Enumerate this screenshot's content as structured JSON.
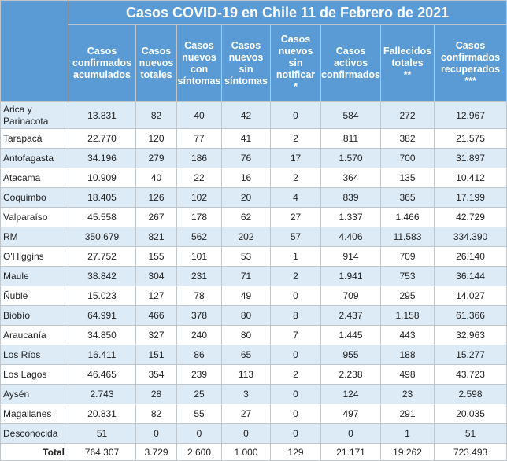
{
  "title": "Casos COVID-19 en Chile 11 de Febrero de 2021",
  "headers": [
    "Casos\nconfirmados\nacumulados",
    "Casos\nnuevos\ntotales",
    "Casos\nnuevos\ncon\nsíntomas",
    "Casos\nnuevos\nsin\nsíntomas",
    "Casos\nnuevos\nsin\nnotificar\n*",
    "Casos\nactivos\nconfirmados",
    "Fallecidos\ntotales\n**",
    "Casos\nconfirmados\nrecuperados\n***"
  ],
  "rows": [
    {
      "region": "Arica y\nParinacota",
      "values": [
        "13.831",
        "82",
        "40",
        "42",
        "0",
        "584",
        "272",
        "12.967"
      ]
    },
    {
      "region": "Tarapacá",
      "values": [
        "22.770",
        "120",
        "77",
        "41",
        "2",
        "811",
        "382",
        "21.575"
      ]
    },
    {
      "region": "Antofagasta",
      "values": [
        "34.196",
        "279",
        "186",
        "76",
        "17",
        "1.570",
        "700",
        "31.897"
      ]
    },
    {
      "region": "Atacama",
      "values": [
        "10.909",
        "40",
        "22",
        "16",
        "2",
        "364",
        "135",
        "10.412"
      ]
    },
    {
      "region": "Coquimbo",
      "values": [
        "18.405",
        "126",
        "102",
        "20",
        "4",
        "839",
        "365",
        "17.199"
      ]
    },
    {
      "region": "Valparaíso",
      "values": [
        "45.558",
        "267",
        "178",
        "62",
        "27",
        "1.337",
        "1.466",
        "42.729"
      ]
    },
    {
      "region": "RM",
      "values": [
        "350.679",
        "821",
        "562",
        "202",
        "57",
        "4.406",
        "11.583",
        "334.390"
      ]
    },
    {
      "region": "O'Higgins",
      "values": [
        "27.752",
        "155",
        "101",
        "53",
        "1",
        "914",
        "709",
        "26.140"
      ]
    },
    {
      "region": "Maule",
      "values": [
        "38.842",
        "304",
        "231",
        "71",
        "2",
        "1.941",
        "753",
        "36.144"
      ]
    },
    {
      "region": "Ñuble",
      "values": [
        "15.023",
        "127",
        "78",
        "49",
        "0",
        "709",
        "295",
        "14.027"
      ]
    },
    {
      "region": "Biobío",
      "values": [
        "64.991",
        "466",
        "378",
        "80",
        "8",
        "2.437",
        "1.158",
        "61.366"
      ]
    },
    {
      "region": "Araucanía",
      "values": [
        "34.850",
        "327",
        "240",
        "80",
        "7",
        "1.445",
        "443",
        "32.963"
      ]
    },
    {
      "region": "Los Ríos",
      "values": [
        "16.411",
        "151",
        "86",
        "65",
        "0",
        "955",
        "188",
        "15.277"
      ]
    },
    {
      "region": "Los Lagos",
      "values": [
        "46.465",
        "354",
        "239",
        "113",
        "2",
        "2.238",
        "498",
        "43.723"
      ]
    },
    {
      "region": "Aysén",
      "values": [
        "2.743",
        "28",
        "25",
        "3",
        "0",
        "124",
        "23",
        "2.598"
      ]
    },
    {
      "region": "Magallanes",
      "values": [
        "20.831",
        "82",
        "55",
        "27",
        "0",
        "497",
        "291",
        "20.035"
      ]
    },
    {
      "region": "Desconocida",
      "values": [
        "51",
        "0",
        "0",
        "0",
        "0",
        "0",
        "1",
        "51"
      ]
    }
  ],
  "total": {
    "label": "Total",
    "values": [
      "764.307",
      "3.729",
      "2.600",
      "1.000",
      "129",
      "21.171",
      "19.262",
      "723.493"
    ]
  },
  "colors": {
    "header_bg": "#5b9bd5",
    "header_text": "#ffffff",
    "stripe": "#ddebf7",
    "grid": "#bfc6cc"
  }
}
